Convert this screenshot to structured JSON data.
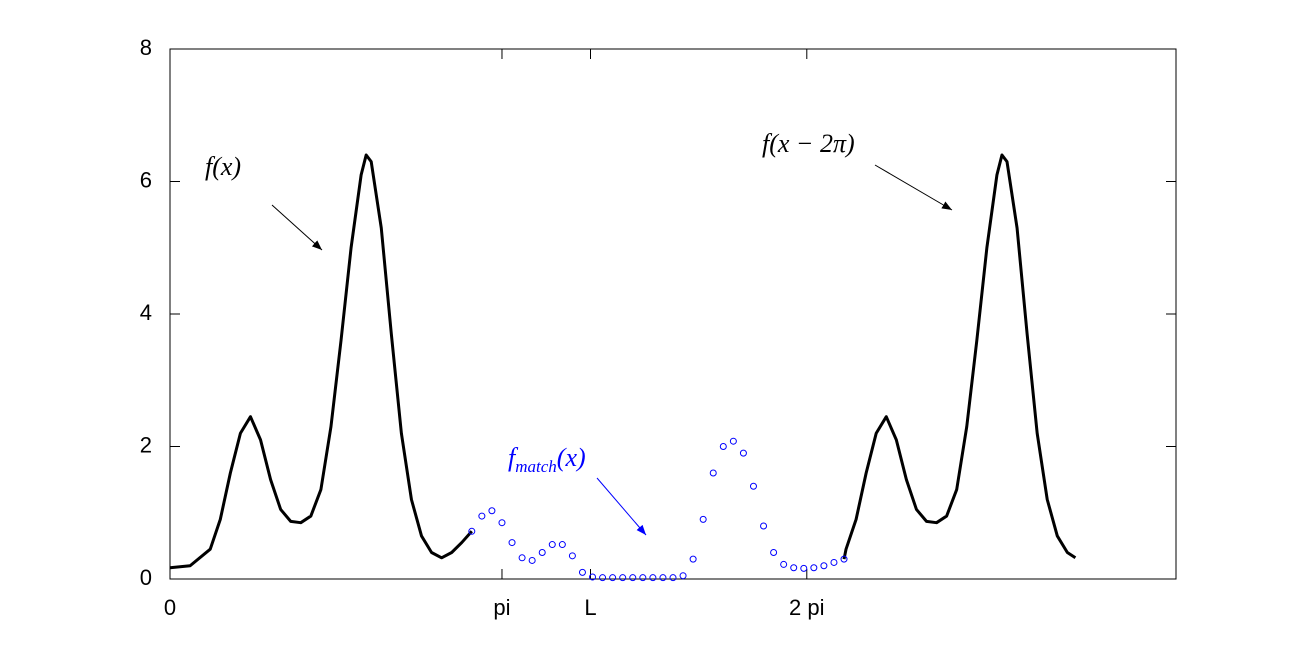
{
  "chart_data": {
    "type": "line",
    "xlim": [
      0,
      10
    ],
    "ylim": [
      0,
      8
    ],
    "xticks": [
      0,
      {
        "value": 3.3,
        "label": "pi"
      },
      {
        "value": 4.18,
        "label": "L"
      },
      {
        "value": 6.33,
        "label": "2 pi"
      }
    ],
    "yticks": [
      0,
      2,
      4,
      6,
      8
    ],
    "grid": false,
    "series": [
      {
        "color": "#000000",
        "style": "line",
        "x": [
          0,
          0.2,
          0.4,
          0.5,
          0.6,
          0.7,
          0.8,
          0.9,
          1.0,
          1.1,
          1.2,
          1.3,
          1.4,
          1.5,
          1.6,
          1.7,
          1.8,
          1.9,
          1.95,
          2.0,
          2.1,
          2.2,
          2.3,
          2.4,
          2.5,
          2.6,
          2.7,
          2.8,
          2.9,
          3.0,
          4.8,
          6.7,
          6.72,
          6.82,
          6.92,
          7.02,
          7.12,
          7.22,
          7.32,
          7.42,
          7.52,
          7.62,
          7.72,
          7.82,
          7.92,
          8.02,
          8.12,
          8.22,
          8.27,
          8.32,
          8.42,
          8.52,
          8.62,
          8.72,
          8.82,
          8.92,
          9.0
        ],
        "values": [
          0.17,
          0.2,
          0.45,
          0.9,
          1.6,
          2.2,
          2.45,
          2.1,
          1.5,
          1.05,
          0.87,
          0.85,
          0.95,
          1.35,
          2.3,
          3.6,
          5.0,
          6.1,
          6.4,
          6.3,
          5.3,
          3.7,
          2.2,
          1.2,
          0.65,
          0.4,
          0.32,
          0.4,
          0.55,
          0.72,
          null,
          0.3,
          0.45,
          0.9,
          1.6,
          2.2,
          2.45,
          2.1,
          1.5,
          1.05,
          0.87,
          0.85,
          0.95,
          1.35,
          2.3,
          3.6,
          5.0,
          6.1,
          6.4,
          6.3,
          5.3,
          3.7,
          2.2,
          1.2,
          0.65,
          0.4,
          0.32
        ]
      },
      {
        "color": "#0000ff",
        "style": "markers",
        "x": [
          3.0,
          3.1,
          3.2,
          3.3,
          3.4,
          3.5,
          3.6,
          3.7,
          3.8,
          3.9,
          4.0,
          4.1,
          4.2,
          4.3,
          4.4,
          4.5,
          4.6,
          4.7,
          4.8,
          4.9,
          5.0,
          5.1,
          5.2,
          5.3,
          5.4,
          5.5,
          5.6,
          5.7,
          5.8,
          5.9,
          6.0,
          6.1,
          6.2,
          6.3,
          6.4,
          6.5,
          6.6,
          6.7
        ],
        "values": [
          0.72,
          0.95,
          1.03,
          0.85,
          0.55,
          0.32,
          0.28,
          0.4,
          0.52,
          0.52,
          0.35,
          0.1,
          0.03,
          0.02,
          0.02,
          0.02,
          0.02,
          0.02,
          0.02,
          0.02,
          0.02,
          0.05,
          0.3,
          0.9,
          1.6,
          2.0,
          2.08,
          1.9,
          1.4,
          0.8,
          0.4,
          0.22,
          0.17,
          0.16,
          0.17,
          0.2,
          0.25,
          0.3
        ]
      }
    ],
    "annotations": [
      {
        "text": "f(x)",
        "color": "#000000"
      },
      {
        "text": "f(x − 2π)",
        "color": "#000000"
      },
      {
        "text": "f",
        "subscript": "match",
        "suffix": "(x)",
        "color": "#0000ff"
      }
    ]
  }
}
